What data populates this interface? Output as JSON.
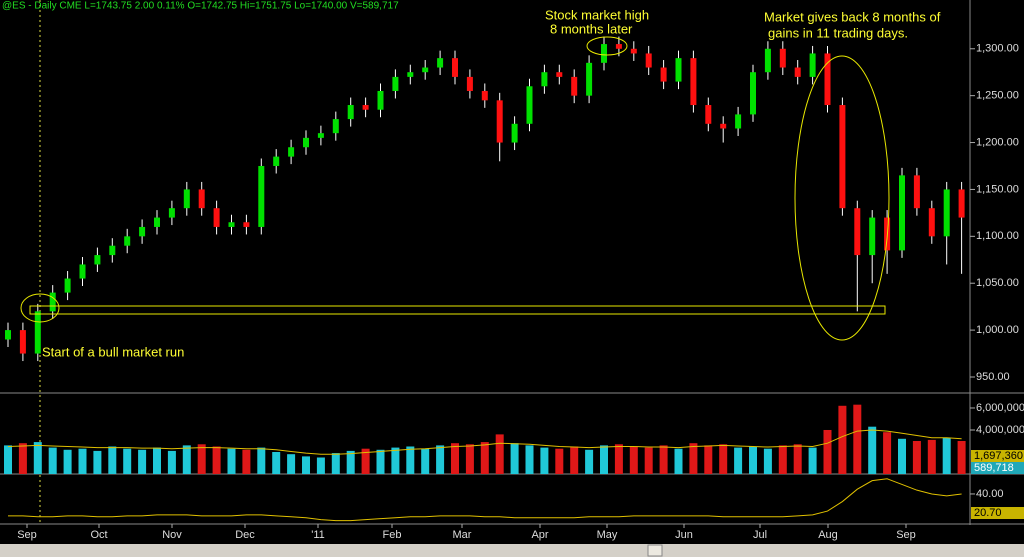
{
  "chart_data": {
    "type": "candlestick",
    "header": "@ES - Daily  CME  L=1743.75  2.00  0.11%  O=1742.75  Hi=1751.75  Lo=1740.00  V=589,717",
    "annotations": [
      "Stock market high",
      "8 months later",
      "Market gives back 8 months of",
      "gains in 11 trading days.",
      "Start of a bull market run"
    ],
    "x_labels": [
      "Sep",
      "Oct",
      "Nov",
      "Dec",
      "'11",
      "Feb",
      "Mar",
      "Apr",
      "May",
      "Jun",
      "Jul",
      "Aug",
      "Sep"
    ],
    "up_color": "#00e000",
    "down_color": "#ff1010",
    "volume_up_color": "#20c8d8",
    "volume_down_color": "#e01818",
    "line_color": "#e0c000",
    "open": [
      990,
      1000,
      975,
      1020,
      1040,
      1055,
      1070,
      1080,
      1090,
      1100,
      1110,
      1120,
      1130,
      1150,
      1130,
      1110,
      1115,
      1110,
      1175,
      1185,
      1195,
      1205,
      1210,
      1225,
      1240,
      1235,
      1255,
      1270,
      1275,
      1280,
      1290,
      1270,
      1255,
      1245,
      1200,
      1220,
      1260,
      1275,
      1270,
      1250,
      1285,
      1305,
      1300,
      1295,
      1280,
      1265,
      1290,
      1240,
      1220,
      1215,
      1230,
      1275,
      1300,
      1280,
      1270,
      1295,
      1240,
      1130,
      1080,
      1120,
      1085,
      1165,
      1130,
      1100,
      1150
    ],
    "high": [
      1008,
      1008,
      1028,
      1048,
      1063,
      1078,
      1088,
      1098,
      1108,
      1118,
      1128,
      1138,
      1158,
      1158,
      1138,
      1123,
      1123,
      1183,
      1193,
      1203,
      1213,
      1218,
      1233,
      1248,
      1248,
      1263,
      1278,
      1283,
      1288,
      1298,
      1298,
      1278,
      1263,
      1253,
      1228,
      1268,
      1283,
      1283,
      1278,
      1293,
      1313,
      1313,
      1308,
      1303,
      1288,
      1298,
      1298,
      1248,
      1228,
      1238,
      1283,
      1308,
      1308,
      1288,
      1303,
      1303,
      1248,
      1138,
      1128,
      1128,
      1173,
      1173,
      1138,
      1158,
      1158
    ],
    "low": [
      982,
      967,
      967,
      1012,
      1032,
      1047,
      1062,
      1072,
      1082,
      1092,
      1102,
      1112,
      1122,
      1122,
      1102,
      1102,
      1102,
      1102,
      1167,
      1177,
      1187,
      1197,
      1202,
      1217,
      1227,
      1227,
      1247,
      1262,
      1267,
      1272,
      1262,
      1247,
      1237,
      1180,
      1192,
      1212,
      1252,
      1262,
      1242,
      1242,
      1277,
      1292,
      1287,
      1272,
      1257,
      1257,
      1232,
      1212,
      1200,
      1207,
      1222,
      1267,
      1272,
      1262,
      1262,
      1232,
      1122,
      1020,
      1050,
      1060,
      1077,
      1122,
      1092,
      1070,
      1060
    ],
    "close": [
      1000,
      975,
      1020,
      1040,
      1055,
      1070,
      1080,
      1090,
      1100,
      1110,
      1120,
      1130,
      1150,
      1130,
      1110,
      1115,
      1110,
      1175,
      1185,
      1195,
      1205,
      1210,
      1225,
      1240,
      1235,
      1255,
      1270,
      1275,
      1280,
      1290,
      1270,
      1255,
      1245,
      1200,
      1220,
      1260,
      1275,
      1270,
      1250,
      1285,
      1305,
      1300,
      1295,
      1280,
      1265,
      1290,
      1240,
      1220,
      1215,
      1230,
      1275,
      1300,
      1280,
      1270,
      1295,
      1240,
      1130,
      1080,
      1120,
      1085,
      1165,
      1130,
      1100,
      1150,
      1120
    ],
    "ylim": [
      934,
      1352
    ],
    "yticks": [
      {
        "value": 950,
        "label": "950.00"
      },
      {
        "value": 1000,
        "label": "1,000.00"
      },
      {
        "value": 1050,
        "label": "1,050.00"
      },
      {
        "value": 1100,
        "label": "1,100.00"
      },
      {
        "value": 1150,
        "label": "1,150.00"
      },
      {
        "value": 1200,
        "label": "1,200.00"
      },
      {
        "value": 1250,
        "label": "1,250.00"
      },
      {
        "value": 1300,
        "label": "1,300.00"
      }
    ],
    "volume": [
      2600000,
      2800000,
      2900000,
      2400000,
      2200000,
      2300000,
      2100000,
      2500000,
      2300000,
      2200000,
      2400000,
      2100000,
      2600000,
      2700000,
      2500000,
      2300000,
      2200000,
      2400000,
      2000000,
      1800000,
      1600000,
      1500000,
      1900000,
      2100000,
      2300000,
      2200000,
      2400000,
      2500000,
      2300000,
      2600000,
      2800000,
      2700000,
      2900000,
      3600000,
      2800000,
      2600000,
      2400000,
      2300000,
      2500000,
      2200000,
      2600000,
      2700000,
      2500000,
      2400000,
      2600000,
      2300000,
      2800000,
      2600000,
      2700000,
      2400000,
      2500000,
      2300000,
      2600000,
      2700000,
      2400000,
      4000000,
      6200000,
      6300000,
      4300000,
      3800000,
      3200000,
      3000000,
      3100000,
      3300000,
      3000000
    ],
    "volume_ma": [
      2500000,
      2550000,
      2600000,
      2550000,
      2500000,
      2450000,
      2400000,
      2400000,
      2400000,
      2350000,
      2350000,
      2300000,
      2350000,
      2400000,
      2400000,
      2350000,
      2300000,
      2300000,
      2200000,
      2050000,
      1900000,
      1800000,
      1800000,
      1850000,
      1950000,
      2050000,
      2150000,
      2250000,
      2300000,
      2400000,
      2500000,
      2550000,
      2650000,
      2800000,
      2750000,
      2700000,
      2600000,
      2500000,
      2450000,
      2400000,
      2450000,
      2500000,
      2500000,
      2450000,
      2450000,
      2400000,
      2500000,
      2550000,
      2600000,
      2550000,
      2500000,
      2450000,
      2500000,
      2550000,
      2500000,
      2800000,
      3400000,
      3900000,
      4000000,
      3900000,
      3700000,
      3500000,
      3300000,
      3300000,
      3200000
    ],
    "vol_ylim": [
      0,
      7180000
    ],
    "vol_yticks": [
      {
        "value": 4000000,
        "label": "4,000,000"
      },
      {
        "value": 6000000,
        "label": "6,000,000"
      }
    ],
    "vol_readouts": [
      "1,697,360",
      "589,718"
    ],
    "indicator": [
      17,
      17,
      16,
      16,
      17,
      17,
      16,
      16,
      17,
      17,
      18,
      18,
      18,
      17,
      17,
      17,
      18,
      18,
      17,
      16,
      15,
      13,
      12,
      12,
      13,
      14,
      15,
      16,
      16,
      17,
      17,
      17,
      16,
      16,
      15,
      15,
      15,
      15,
      15,
      16,
      16,
      16,
      17,
      17,
      17,
      17,
      17,
      17,
      16,
      16,
      16,
      16,
      16,
      17,
      18,
      22,
      32,
      45,
      54,
      56,
      50,
      44,
      40,
      38,
      40
    ],
    "ind_ylim": [
      10.5,
      61
    ],
    "ind_yticks": [
      {
        "value": 40,
        "label": "40.00"
      }
    ],
    "ind_readout": "20.70"
  }
}
